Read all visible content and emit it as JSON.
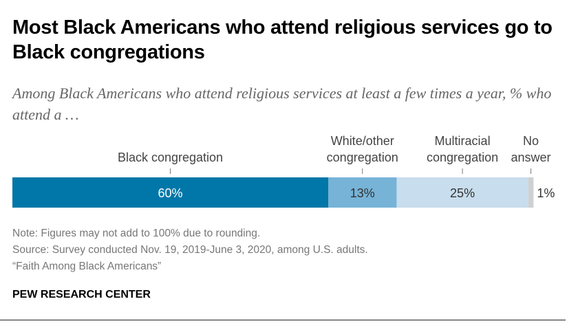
{
  "title": "Most Black Americans who attend religious services go to Black congregations",
  "subtitle": "Among Black Americans who attend religious services at least a few times a year, % who attend a …",
  "chart_data": {
    "type": "bar",
    "orientation": "horizontal-stacked",
    "categories": [
      "Black congregation",
      "White/other congregation",
      "Multiracial congregation",
      "No answer"
    ],
    "label_lines": [
      [
        "Black congregation"
      ],
      [
        "White/other",
        "congregation"
      ],
      [
        "Multiracial",
        "congregation"
      ],
      [
        "No",
        "answer"
      ]
    ],
    "values": [
      60,
      13,
      25,
      1
    ],
    "value_labels": [
      "60%",
      "13%",
      "25%",
      "1%"
    ],
    "colors": [
      "#0077a8",
      "#76b3d6",
      "#c8dded",
      "#d0d0d0"
    ],
    "label_colors": [
      "#ffffff",
      "#333333",
      "#333333",
      "#333333"
    ]
  },
  "notes": [
    "Note: Figures may not add to 100% due to rounding.",
    "Source: Survey conducted Nov. 19, 2019-June 3, 2020, among U.S. adults.",
    "“Faith Among Black Americans”"
  ],
  "brand": "PEW RESEARCH CENTER"
}
